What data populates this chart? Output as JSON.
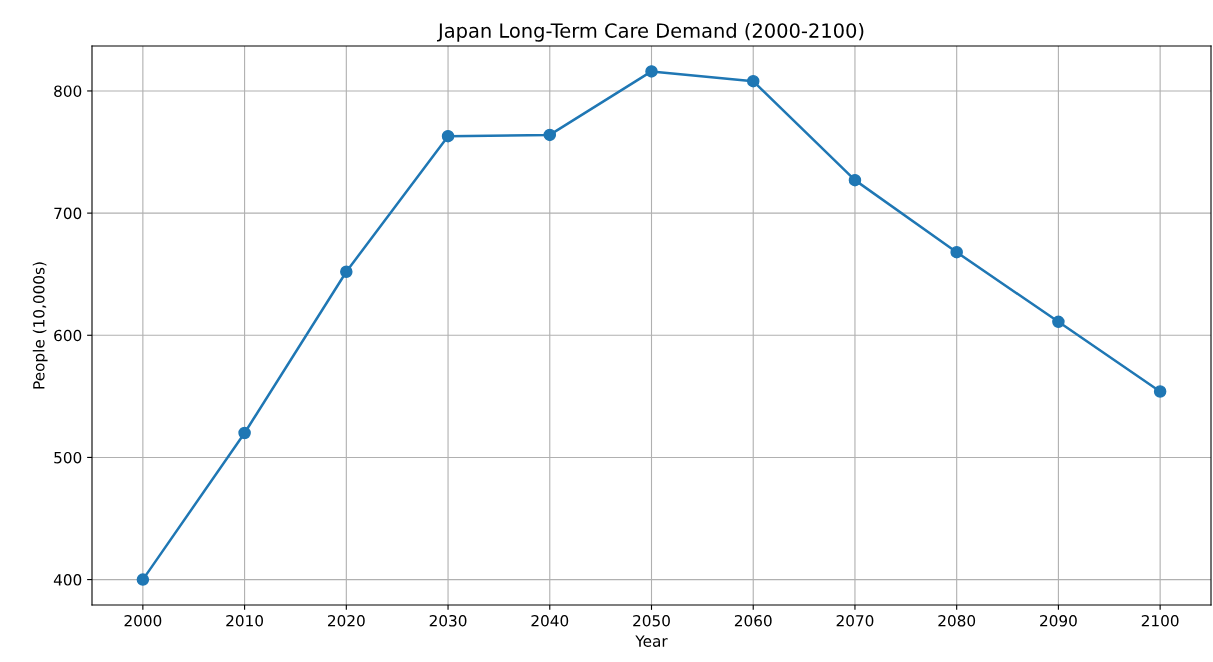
{
  "chart_data": {
    "type": "line",
    "title": "Japan Long-Term Care Demand (2000-2100)",
    "xlabel": "Year",
    "ylabel": "People (10,000s)",
    "x": [
      2000,
      2010,
      2020,
      2030,
      2040,
      2050,
      2060,
      2070,
      2080,
      2090,
      2100
    ],
    "series": [
      {
        "color": "#1f77b4",
        "values": [
          400,
          520,
          652,
          763,
          764,
          816,
          808,
          727,
          668,
          611,
          554
        ]
      }
    ],
    "xlim": [
      1995,
      2105
    ],
    "xticks": [
      2000,
      2010,
      2020,
      2030,
      2040,
      2050,
      2060,
      2070,
      2080,
      2090,
      2100
    ],
    "ylim": [
      379.2,
      836.8
    ],
    "yticks": [
      400,
      500,
      600,
      700,
      800
    ],
    "grid": true,
    "marker": "circle",
    "line_style": "solid"
  }
}
